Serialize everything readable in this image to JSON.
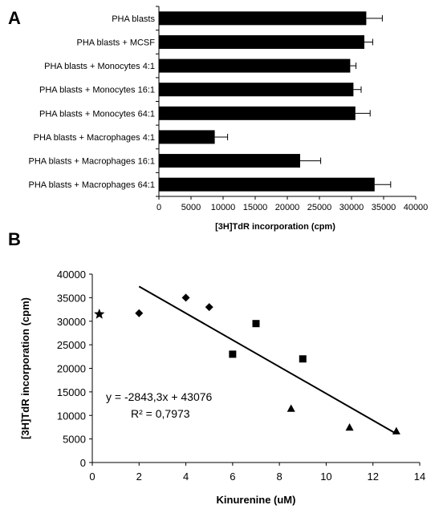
{
  "chart_data": [
    {
      "panel": "A",
      "type": "bar",
      "orientation": "horizontal",
      "categories": [
        "PHA blasts",
        "PHA blasts + MCSF",
        "PHA blasts + Monocytes 4:1",
        "PHA blasts + Monocytes 16:1",
        "PHA blasts + Monocytes 64:1",
        "PHA blasts + Macrophages 4:1",
        "PHA blasts + Macrophages 16:1",
        "PHA blasts + Macrophages 64:1"
      ],
      "values": [
        32300,
        32000,
        29800,
        30300,
        30600,
        8700,
        22000,
        33600
      ],
      "errors": [
        2500,
        1300,
        900,
        1200,
        2300,
        2000,
        3200,
        2500
      ],
      "xlabel": "[3H]TdR incorporation (cpm)",
      "xlim": [
        0,
        40000
      ],
      "xticks": [
        "0",
        "5000",
        "10000",
        "15000",
        "20000",
        "25000",
        "30000",
        "35000",
        "40000"
      ],
      "color": "#000000"
    },
    {
      "panel": "B",
      "type": "scatter",
      "series": [
        {
          "marker": "star",
          "x": [
            0.3
          ],
          "y": [
            31500
          ]
        },
        {
          "marker": "diamond",
          "x": [
            2,
            4,
            5
          ],
          "y": [
            31700,
            35000,
            33000
          ]
        },
        {
          "marker": "square",
          "x": [
            6,
            7,
            9
          ],
          "y": [
            23000,
            29500,
            22000
          ]
        },
        {
          "marker": "triangle",
          "x": [
            8.5,
            11,
            13
          ],
          "y": [
            11500,
            7500,
            6700
          ]
        }
      ],
      "trendline": {
        "slope": -2843.3,
        "intercept": 43076,
        "x_range": [
          2,
          13
        ]
      },
      "equation": "y = -2843,3x + 43076",
      "r2_label": "R² = 0,7973",
      "xlabel": "Kinurenine (uM)",
      "ylabel": "[3H]TdR incorporation (cpm)",
      "xlim": [
        0,
        14
      ],
      "ylim": [
        0,
        40000
      ],
      "xticks": [
        "0",
        "2",
        "4",
        "6",
        "8",
        "10",
        "12",
        "14"
      ],
      "yticks": [
        "0",
        "5000",
        "10000",
        "15000",
        "20000",
        "25000",
        "30000",
        "35000",
        "40000"
      ],
      "color": "#000000"
    }
  ],
  "panels": {
    "a_letter": "A",
    "b_letter": "B"
  }
}
